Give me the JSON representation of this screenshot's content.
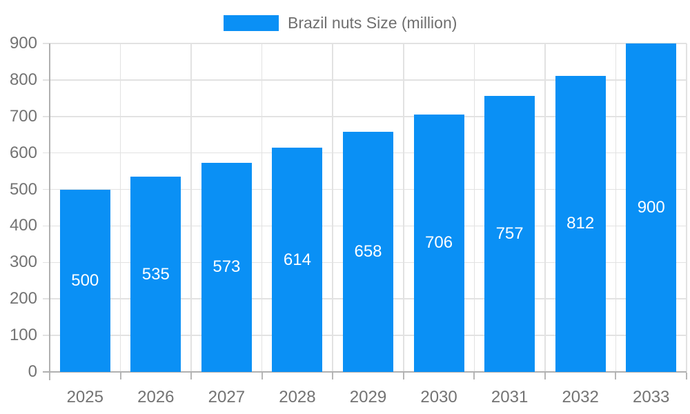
{
  "legend": {
    "label": "Brazil nuts Size (million)"
  },
  "chart_data": {
    "type": "bar",
    "title": "Brazil nuts Size (million)",
    "series_name": "Brazil nuts Size (million)",
    "categories": [
      "2025",
      "2026",
      "2027",
      "2028",
      "2029",
      "2030",
      "2031",
      "2032",
      "2033"
    ],
    "values": [
      500,
      535,
      573,
      614,
      658,
      706,
      757,
      812,
      900
    ],
    "bar_value_labels": [
      "500",
      "535",
      "573",
      "614",
      "658",
      "706",
      "757",
      "812",
      "900"
    ],
    "xlabel": "",
    "ylabel": "",
    "ylim": [
      0,
      900
    ],
    "ytick_step": 100,
    "ytick_labels": [
      "0",
      "100",
      "200",
      "300",
      "400",
      "500",
      "600",
      "700",
      "800",
      "900"
    ],
    "grid": true,
    "legend_position": "top-center",
    "colors": {
      "bar": "#0a90f5",
      "bar_label": "#ffffff",
      "axis_text": "#737373",
      "legend_text": "#6f6f6f",
      "grid_line": "#e2e2e2",
      "axis_line": "#b0b0b0",
      "background": "#ffffff"
    }
  }
}
